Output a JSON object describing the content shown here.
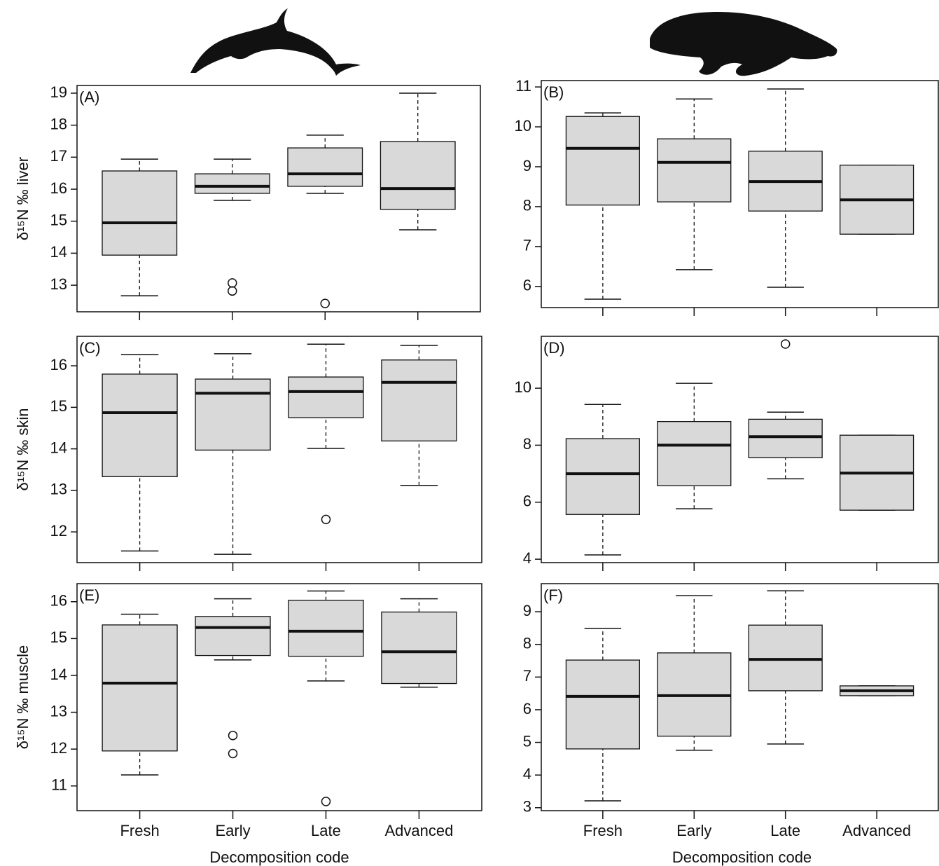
{
  "chart_data": [
    {
      "type": "box",
      "panel_label": "(A)",
      "ylabel": "δ¹⁵N ‰ liver",
      "ylim": [
        12.17,
        19.24
      ],
      "yticks": [
        13,
        14,
        15,
        16,
        17,
        18,
        19
      ],
      "color": "#d9d9d9",
      "boxes": [
        {
          "whisker_low": 12.67,
          "q1": 13.94,
          "median": 14.95,
          "q3": 16.57,
          "whisker_high": 16.94,
          "outliers": []
        },
        {
          "whisker_low": 15.65,
          "q1": 15.87,
          "median": 16.09,
          "q3": 16.48,
          "whisker_high": 16.94,
          "outliers": [
            13.07,
            12.82
          ]
        },
        {
          "whisker_low": 15.87,
          "q1": 16.09,
          "median": 16.48,
          "q3": 17.29,
          "whisker_high": 17.69,
          "outliers": [
            12.43
          ]
        },
        {
          "whisker_low": 14.73,
          "q1": 15.37,
          "median": 16.02,
          "q3": 17.49,
          "whisker_high": 19.0,
          "outliers": []
        }
      ]
    },
    {
      "type": "box",
      "panel_label": "(B)",
      "ylim": [
        5.47,
        11.16
      ],
      "yticks": [
        6,
        7,
        8,
        9,
        10,
        11
      ],
      "color": "#d9d9d9",
      "boxes": [
        {
          "whisker_low": 5.68,
          "q1": 8.04,
          "median": 9.46,
          "q3": 10.26,
          "whisker_high": 10.35,
          "outliers": []
        },
        {
          "whisker_low": 6.42,
          "q1": 8.12,
          "median": 9.11,
          "q3": 9.7,
          "whisker_high": 10.7,
          "outliers": []
        },
        {
          "whisker_low": 5.98,
          "q1": 7.89,
          "median": 8.63,
          "q3": 9.39,
          "whisker_high": 10.95,
          "outliers": []
        },
        {
          "whisker_low": 7.31,
          "q1": 7.31,
          "median": 8.17,
          "q3": 9.04,
          "whisker_high": 9.04,
          "outliers": []
        }
      ]
    },
    {
      "type": "box",
      "panel_label": "(C)",
      "ylabel": "δ¹⁵N ‰ skin",
      "ylim": [
        11.26,
        16.71
      ],
      "yticks": [
        12,
        13,
        14,
        15,
        16
      ],
      "color": "#d9d9d9",
      "boxes": [
        {
          "whisker_low": 11.54,
          "q1": 13.33,
          "median": 14.87,
          "q3": 15.8,
          "whisker_high": 16.27,
          "outliers": []
        },
        {
          "whisker_low": 11.46,
          "q1": 13.97,
          "median": 15.34,
          "q3": 15.68,
          "whisker_high": 16.29,
          "outliers": []
        },
        {
          "whisker_low": 14.01,
          "q1": 14.75,
          "median": 15.38,
          "q3": 15.73,
          "whisker_high": 16.52,
          "outliers": [
            12.3
          ]
        },
        {
          "whisker_low": 13.12,
          "q1": 14.19,
          "median": 15.6,
          "q3": 16.14,
          "whisker_high": 16.49,
          "outliers": []
        }
      ]
    },
    {
      "type": "box",
      "panel_label": "(D)",
      "ylim": [
        3.88,
        11.82
      ],
      "yticks": [
        4,
        6,
        8,
        10
      ],
      "color": "#d9d9d9",
      "boxes": [
        {
          "whisker_low": 4.15,
          "q1": 5.57,
          "median": 7.0,
          "q3": 8.23,
          "whisker_high": 9.43,
          "outliers": []
        },
        {
          "whisker_low": 5.77,
          "q1": 6.58,
          "median": 8.0,
          "q3": 8.83,
          "whisker_high": 10.17,
          "outliers": []
        },
        {
          "whisker_low": 6.82,
          "q1": 7.56,
          "median": 8.3,
          "q3": 8.91,
          "whisker_high": 9.16,
          "outliers": [
            11.55
          ]
        },
        {
          "whisker_low": 5.72,
          "q1": 5.72,
          "median": 7.02,
          "q3": 8.35,
          "whisker_high": 8.35,
          "outliers": []
        }
      ]
    },
    {
      "type": "box",
      "panel_label": "(E)",
      "ylabel": "δ¹⁵N ‰ muscle",
      "xlabel": "Decomposition code",
      "categories": [
        "Fresh",
        "Early",
        "Late",
        "Advanced"
      ],
      "ylim": [
        10.33,
        16.49
      ],
      "yticks": [
        11,
        12,
        13,
        14,
        15,
        16
      ],
      "color": "#d9d9d9",
      "boxes": [
        {
          "whisker_low": 11.3,
          "q1": 11.95,
          "median": 13.79,
          "q3": 15.37,
          "whisker_high": 15.66,
          "outliers": []
        },
        {
          "whisker_low": 14.42,
          "q1": 14.54,
          "median": 15.3,
          "q3": 15.6,
          "whisker_high": 16.08,
          "outliers": [
            12.37,
            11.88
          ]
        },
        {
          "whisker_low": 13.85,
          "q1": 14.52,
          "median": 15.2,
          "q3": 16.04,
          "whisker_high": 16.29,
          "outliers": [
            10.58
          ]
        },
        {
          "whisker_low": 13.68,
          "q1": 13.78,
          "median": 14.64,
          "q3": 15.72,
          "whisker_high": 16.08,
          "outliers": []
        }
      ]
    },
    {
      "type": "box",
      "panel_label": "(F)",
      "xlabel": "Decomposition code",
      "categories": [
        "Fresh",
        "Early",
        "Late",
        "Advanced"
      ],
      "ylim": [
        2.91,
        9.86
      ],
      "yticks": [
        3,
        4,
        5,
        6,
        7,
        8,
        9
      ],
      "color": "#d9d9d9",
      "boxes": [
        {
          "whisker_low": 3.21,
          "q1": 4.8,
          "median": 6.41,
          "q3": 7.52,
          "whisker_high": 8.49,
          "outliers": []
        },
        {
          "whisker_low": 4.76,
          "q1": 5.19,
          "median": 6.43,
          "q3": 7.74,
          "whisker_high": 9.49,
          "outliers": []
        },
        {
          "whisker_low": 4.95,
          "q1": 6.58,
          "median": 7.54,
          "q3": 8.59,
          "whisker_high": 9.64,
          "outliers": []
        },
        {
          "whisker_low": 6.43,
          "q1": 6.43,
          "median": 6.58,
          "q3": 6.73,
          "whisker_high": 6.73,
          "outliers": []
        }
      ]
    }
  ]
}
